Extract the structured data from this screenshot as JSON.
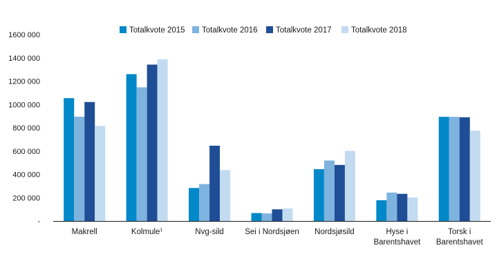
{
  "chart_data": {
    "type": "bar",
    "categories": [
      {
        "lines": [
          "Makrell"
        ],
        "sup": ""
      },
      {
        "lines": [
          "Kolmule"
        ],
        "sup": "1"
      },
      {
        "lines": [
          "Nvg-sild"
        ],
        "sup": ""
      },
      {
        "lines": [
          "Sei i Nordsjøen"
        ],
        "sup": ""
      },
      {
        "lines": [
          "Nordsjøsild"
        ],
        "sup": ""
      },
      {
        "lines": [
          "Hyse i",
          "Barentshavet"
        ],
        "sup": ""
      },
      {
        "lines": [
          "Torsk i",
          "Barentshavet"
        ],
        "sup": ""
      }
    ],
    "series": [
      {
        "name": "Totalkvote 2015",
        "color": "#0088c9",
        "values": [
          1054000,
          1260000,
          283000,
          68000,
          445000,
          178000,
          894000
        ]
      },
      {
        "name": "Totalkvote 2016",
        "color": "#7eb3df",
        "values": [
          895000,
          1147000,
          317000,
          65000,
          519000,
          244000,
          894000
        ]
      },
      {
        "name": "Totalkvote 2017",
        "color": "#1f4e96",
        "values": [
          1021000,
          1342000,
          646000,
          100000,
          481000,
          233000,
          890000
        ]
      },
      {
        "name": "Totalkvote 2018",
        "color": "#c3dbf1",
        "values": [
          816000,
          1388000,
          437000,
          108000,
          602000,
          202000,
          775000
        ]
      }
    ],
    "y_ticks": [
      {
        "value": 0,
        "label": "-"
      },
      {
        "value": 200000,
        "label": "200 000"
      },
      {
        "value": 400000,
        "label": "400 000"
      },
      {
        "value": 600000,
        "label": "600 000"
      },
      {
        "value": 800000,
        "label": "800 000"
      },
      {
        "value": 1000000,
        "label": "1000 000"
      },
      {
        "value": 1200000,
        "label": "1200 000"
      },
      {
        "value": 1400000,
        "label": "1400 000"
      },
      {
        "value": 1600000,
        "label": "1600 000"
      }
    ],
    "ylim": [
      0,
      1600000
    ],
    "grid": false,
    "legend_position": "top"
  }
}
